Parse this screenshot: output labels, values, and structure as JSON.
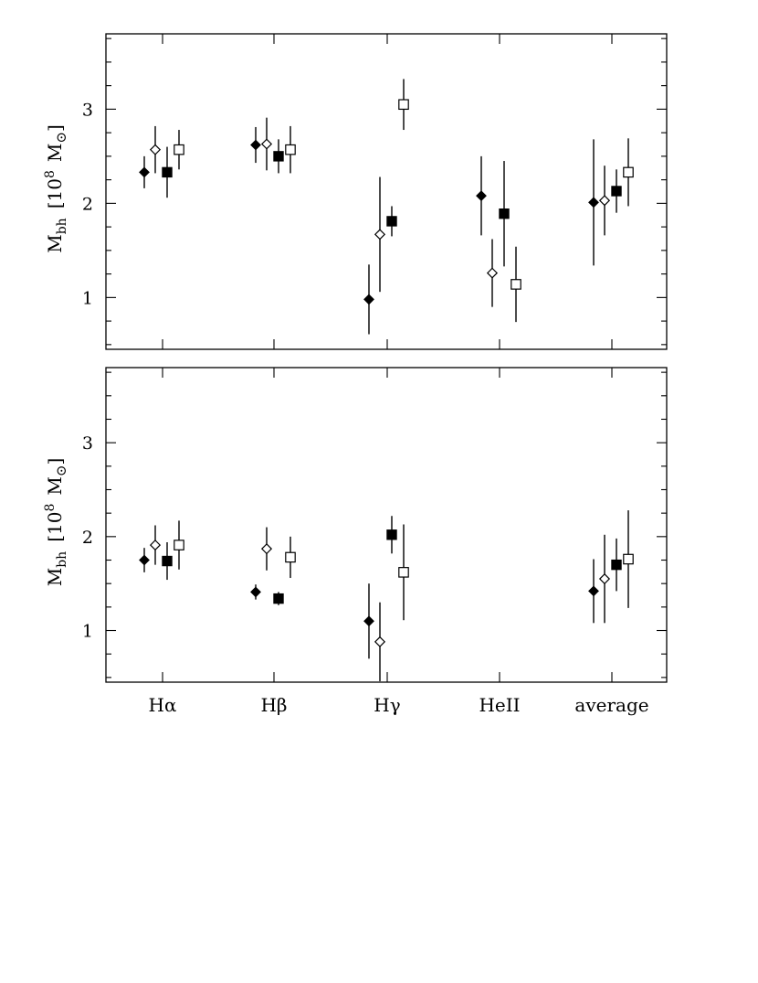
{
  "chart_data": {
    "type": "scatter",
    "categories": [
      "Hα",
      "Hβ",
      "Hγ",
      "HeII",
      "average"
    ],
    "ylabel": "M_bh [10^8 M⊙]",
    "ylabel_parts": {
      "main": "M",
      "sub": "bh",
      "bracket_open": "[",
      "power_base": "10",
      "power_exp": "8",
      "unit": "M",
      "unit_sub": "⊙",
      "bracket_close": "]"
    },
    "y_ticks": [
      1,
      2,
      3
    ],
    "y_tick_labels": [
      "1",
      "2",
      "3"
    ],
    "panels": [
      {
        "name": "top",
        "ylim": [
          0.45,
          3.8
        ],
        "series": [
          {
            "marker": "filled-diamond",
            "values": [
              2.33,
              2.62,
              0.98,
              2.08,
              2.01
            ],
            "err": [
              0.17,
              0.19,
              0.37,
              0.42,
              0.67
            ]
          },
          {
            "marker": "open-diamond",
            "values": [
              2.57,
              2.63,
              1.67,
              1.26,
              2.03
            ],
            "err": [
              0.25,
              0.28,
              0.61,
              0.36,
              0.37
            ]
          },
          {
            "marker": "filled-square",
            "values": [
              2.33,
              2.5,
              1.81,
              1.89,
              2.13
            ],
            "err": [
              0.27,
              0.18,
              0.16,
              0.56,
              0.23
            ]
          },
          {
            "marker": "open-square",
            "values": [
              2.57,
              2.57,
              3.05,
              1.14,
              2.33
            ],
            "err": [
              0.21,
              0.25,
              0.27,
              0.4,
              0.36
            ]
          }
        ]
      },
      {
        "name": "bottom",
        "ylim": [
          0.45,
          3.8
        ],
        "series": [
          {
            "marker": "filled-diamond",
            "values": [
              1.75,
              1.41,
              1.1,
              null,
              1.42
            ],
            "err": [
              0.13,
              0.08,
              0.4,
              null,
              0.34
            ]
          },
          {
            "marker": "open-diamond",
            "values": [
              1.91,
              1.87,
              0.88,
              null,
              1.55
            ],
            "err": [
              0.21,
              0.23,
              0.42,
              null,
              0.47
            ]
          },
          {
            "marker": "filled-square",
            "values": [
              1.74,
              1.34,
              2.02,
              null,
              1.7
            ],
            "err": [
              0.2,
              0.07,
              0.2,
              null,
              0.28
            ]
          },
          {
            "marker": "open-square",
            "values": [
              1.91,
              1.78,
              1.62,
              null,
              1.76
            ],
            "err": [
              0.26,
              0.22,
              0.51,
              null,
              0.52
            ]
          }
        ]
      }
    ]
  }
}
